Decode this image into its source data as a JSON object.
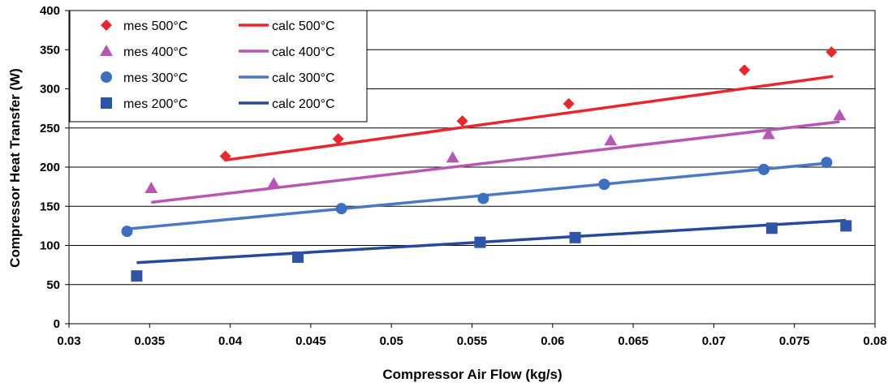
{
  "chart_data": {
    "type": "scatter",
    "title": "",
    "xlabel": "Compressor Air Flow (kg/s)",
    "ylabel": "Compressor Heat Transfer (W)",
    "xlim": [
      0.03,
      0.08
    ],
    "ylim": [
      0,
      400
    ],
    "x_ticks": [
      "0.03",
      "0.035",
      "0.04",
      "0.045",
      "0.05",
      "0.055",
      "0.06",
      "0.065",
      "0.07",
      "0.075",
      "0.08"
    ],
    "y_ticks": [
      "0",
      "50",
      "100",
      "150",
      "200",
      "250",
      "300",
      "350",
      "400"
    ],
    "grid": "horizontal",
    "legend_position": "top-left",
    "series": [
      {
        "name": "mes 500°C",
        "kind": "marker",
        "marker": "diamond",
        "color": "#e8262c",
        "points": [
          [
            0.0397,
            214
          ],
          [
            0.0467,
            236
          ],
          [
            0.0544,
            259
          ],
          [
            0.061,
            281
          ],
          [
            0.0719,
            324
          ],
          [
            0.0773,
            347
          ]
        ]
      },
      {
        "name": "mes 400°C",
        "kind": "marker",
        "marker": "triangle",
        "color": "#b657b4",
        "points": [
          [
            0.0351,
            173
          ],
          [
            0.0427,
            179
          ],
          [
            0.0538,
            212
          ],
          [
            0.0636,
            234
          ],
          [
            0.0734,
            242
          ],
          [
            0.0778,
            266
          ]
        ]
      },
      {
        "name": "mes 300°C",
        "kind": "marker",
        "marker": "circle",
        "color": "#3c6fc0",
        "points": [
          [
            0.0336,
            118
          ],
          [
            0.0469,
            147
          ],
          [
            0.0557,
            160
          ],
          [
            0.0632,
            178
          ],
          [
            0.0731,
            197
          ],
          [
            0.077,
            206
          ]
        ]
      },
      {
        "name": "mes 200°C",
        "kind": "marker",
        "marker": "square",
        "color": "#2f55a8",
        "points": [
          [
            0.0342,
            61
          ],
          [
            0.0442,
            85
          ],
          [
            0.0555,
            104
          ],
          [
            0.0614,
            110
          ],
          [
            0.0736,
            122
          ],
          [
            0.0782,
            125
          ]
        ]
      },
      {
        "name": "calc 500°C",
        "kind": "line",
        "color": "#e8262c",
        "points": [
          [
            0.0397,
            209
          ],
          [
            0.0774,
            316
          ]
        ]
      },
      {
        "name": "calc 400°C",
        "kind": "line",
        "color": "#b657b4",
        "points": [
          [
            0.0351,
            155
          ],
          [
            0.0778,
            258
          ]
        ]
      },
      {
        "name": "calc 300°C",
        "kind": "line",
        "color": "#4a79c3",
        "points": [
          [
            0.0336,
            121
          ],
          [
            0.077,
            205
          ]
        ]
      },
      {
        "name": "calc 200°C",
        "kind": "line",
        "color": "#264a99",
        "points": [
          [
            0.0342,
            78
          ],
          [
            0.0782,
            132
          ]
        ]
      }
    ],
    "legend": [
      {
        "label": "mes 500°C",
        "series": 0
      },
      {
        "label": "calc 500°C",
        "series": 4
      },
      {
        "label": "mes 400°C",
        "series": 1
      },
      {
        "label": "calc 400°C",
        "series": 5
      },
      {
        "label": "mes 300°C",
        "series": 2
      },
      {
        "label": "calc 300°C",
        "series": 6
      },
      {
        "label": "mes 200°C",
        "series": 3
      },
      {
        "label": "calc 200°C",
        "series": 7
      }
    ]
  }
}
